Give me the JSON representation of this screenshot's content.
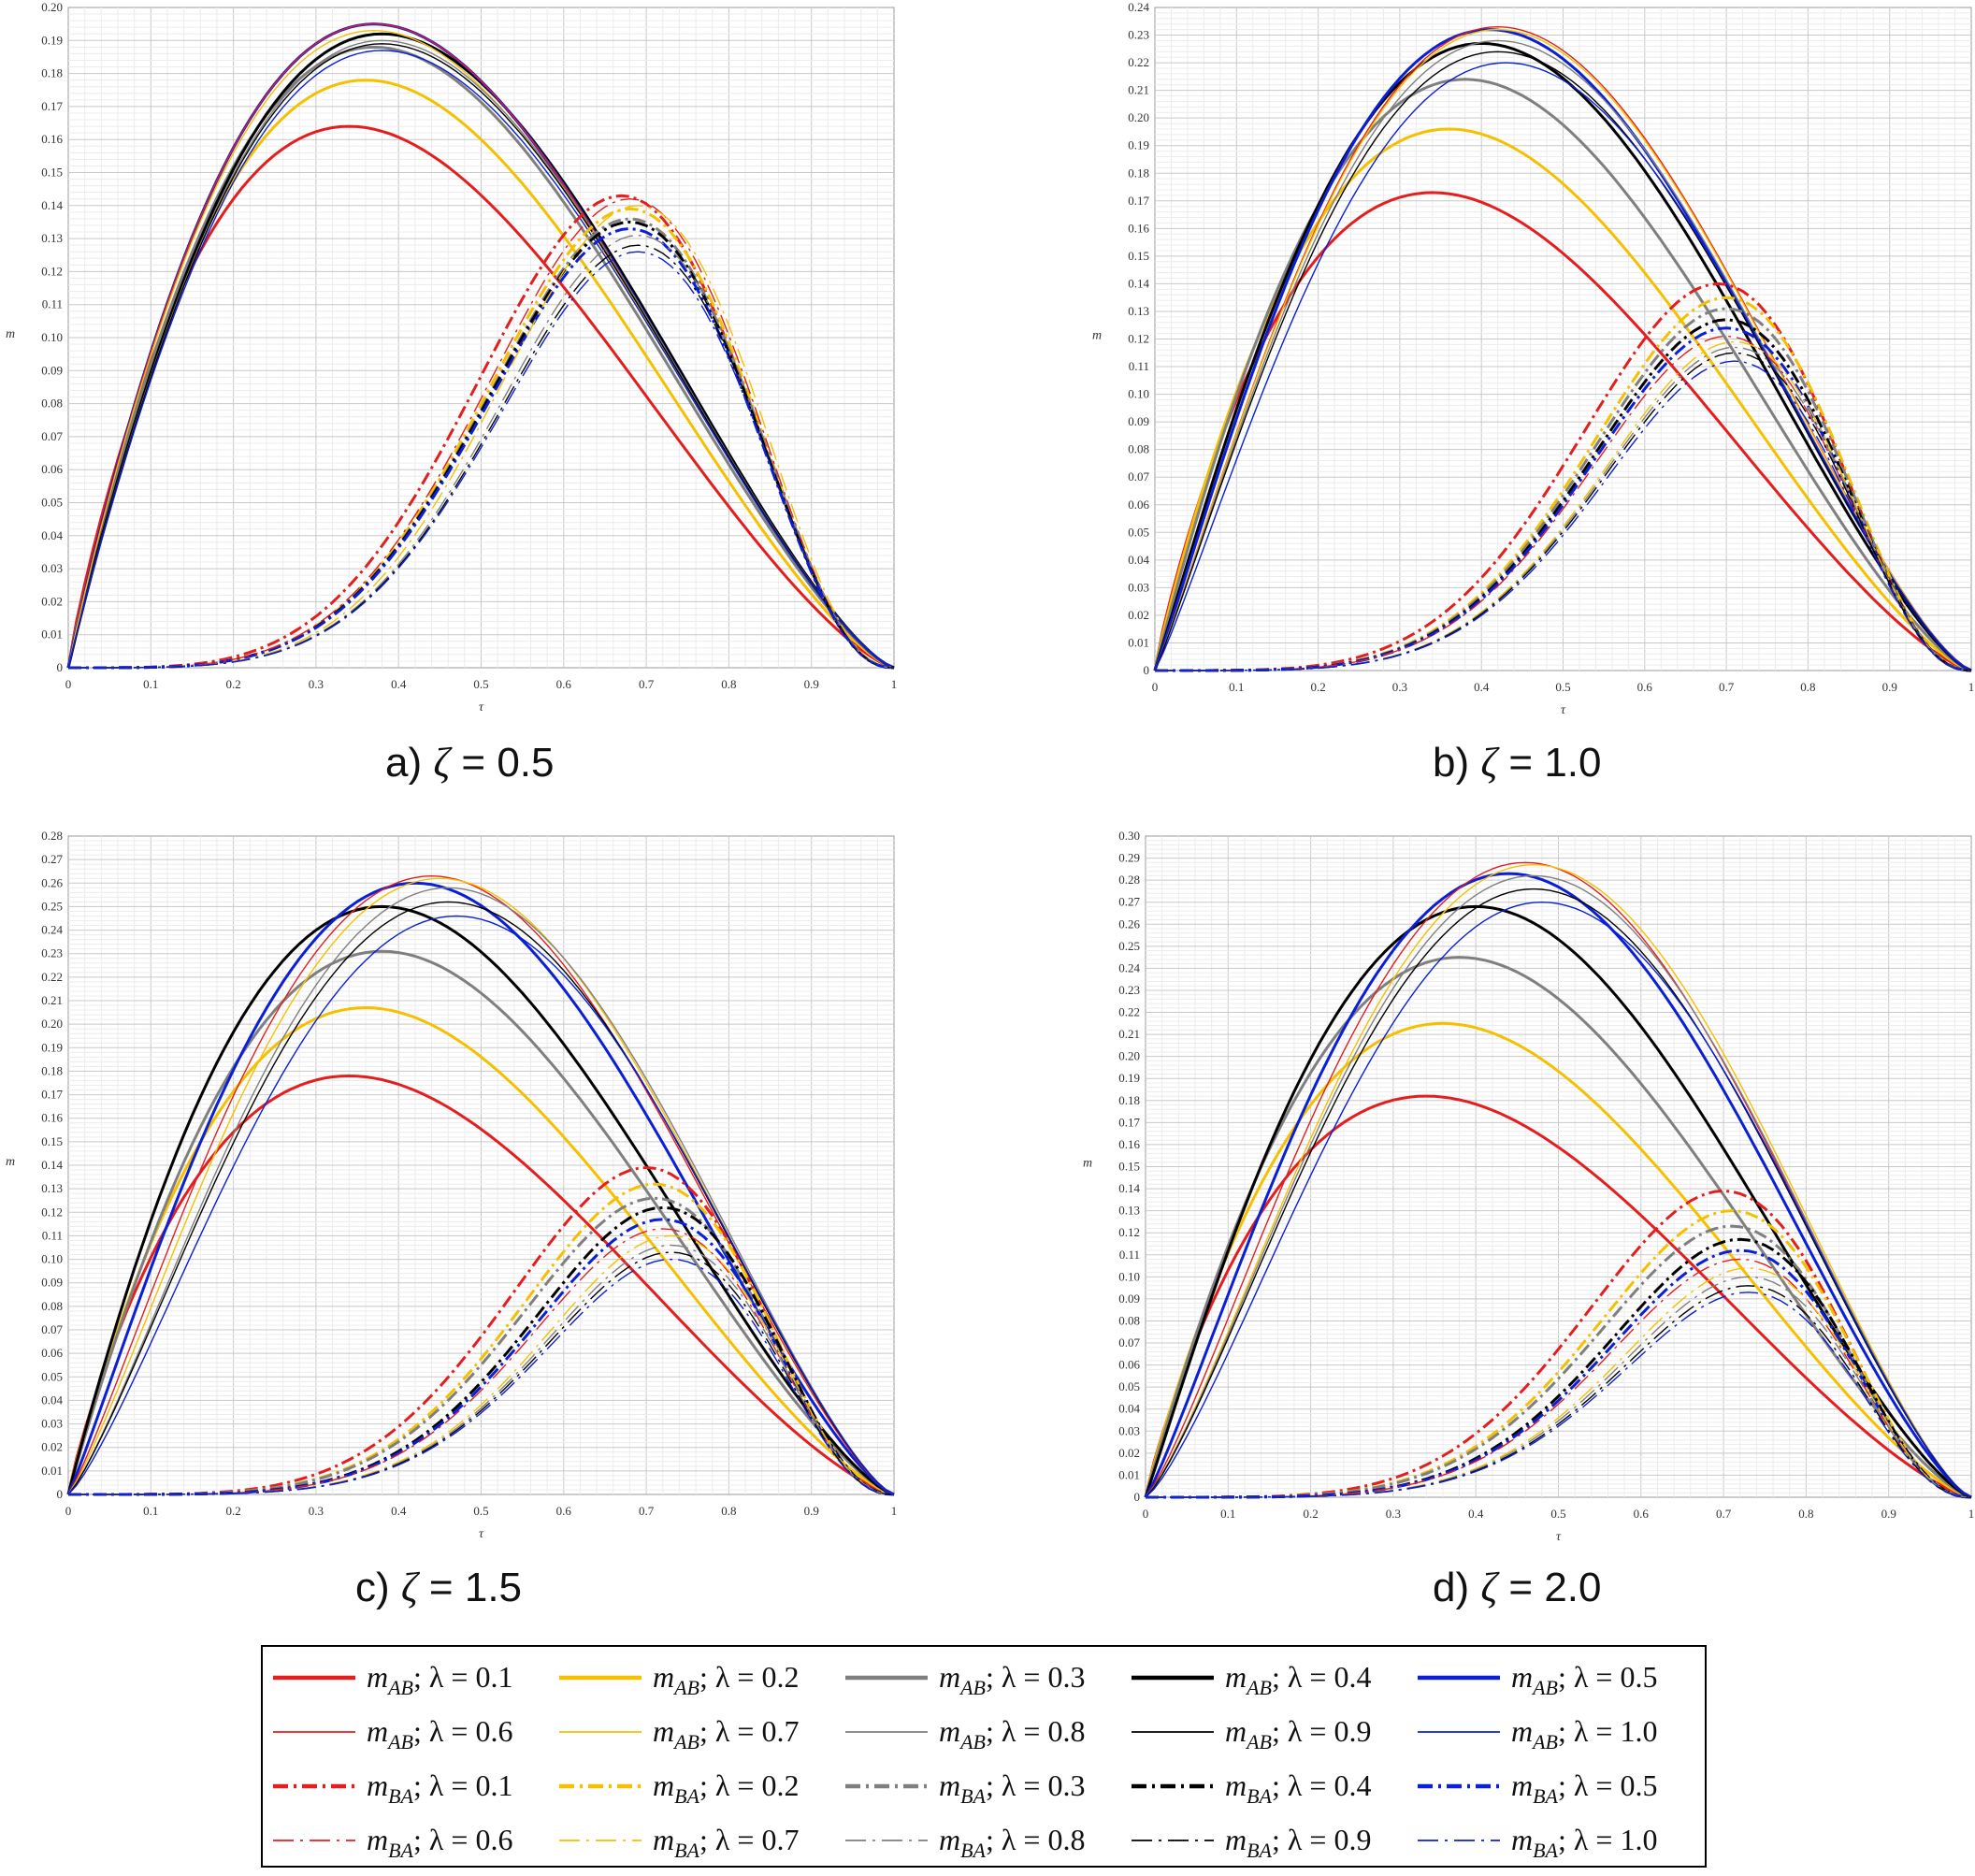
{
  "chart_data": [
    {
      "type": "line",
      "id": "a",
      "caption_prefix": "a) ",
      "caption_symbol": "ζ",
      "caption_value": " = 0.5",
      "xlabel": "τ",
      "ylabel": "m",
      "xlim": [
        0,
        1
      ],
      "ylim": [
        0,
        0.2
      ],
      "ystep": 0.01,
      "grid": true,
      "xticks": [
        "0",
        "0.1",
        "0.2",
        "0.3",
        "0.4",
        "0.5",
        "0.6",
        "0.7",
        "0.8",
        "0.9",
        "1"
      ],
      "yticks": [
        "0",
        "0.01",
        "0.02",
        "0.03",
        "0.04",
        "0.05",
        "0.06",
        "0.07",
        "0.08",
        "0.09",
        "0.10",
        "0.11",
        "0.12",
        "0.13",
        "0.14",
        "0.15",
        "0.16",
        "0.17",
        "0.18",
        "0.19",
        "0.20"
      ],
      "series": [
        {
          "name": "m_AB; λ = 0.1",
          "peak_x": 0.34,
          "peak_y": 0.164
        },
        {
          "name": "m_AB; λ = 0.2",
          "peak_x": 0.36,
          "peak_y": 0.178
        },
        {
          "name": "m_AB; λ = 0.3",
          "peak_x": 0.37,
          "peak_y": 0.188
        },
        {
          "name": "m_AB; λ = 0.4",
          "peak_x": 0.38,
          "peak_y": 0.192
        },
        {
          "name": "m_AB; λ = 0.5",
          "peak_x": 0.37,
          "peak_y": 0.195
        },
        {
          "name": "m_AB; λ = 0.6",
          "peak_x": 0.37,
          "peak_y": 0.195
        },
        {
          "name": "m_AB; λ = 0.7",
          "peak_x": 0.37,
          "peak_y": 0.193
        },
        {
          "name": "m_AB; λ = 0.8",
          "peak_x": 0.38,
          "peak_y": 0.19
        },
        {
          "name": "m_AB; λ = 0.9",
          "peak_x": 0.38,
          "peak_y": 0.189
        },
        {
          "name": "m_AB; λ = 1.0",
          "peak_x": 0.38,
          "peak_y": 0.187
        },
        {
          "name": "m_BA; λ = 0.1",
          "peak_x": 0.67,
          "peak_y": 0.143
        },
        {
          "name": "m_BA; λ = 0.2",
          "peak_x": 0.68,
          "peak_y": 0.139
        },
        {
          "name": "m_BA; λ = 0.3",
          "peak_x": 0.68,
          "peak_y": 0.136
        },
        {
          "name": "m_BA; λ = 0.4",
          "peak_x": 0.68,
          "peak_y": 0.135
        },
        {
          "name": "m_BA; λ = 0.5",
          "peak_x": 0.68,
          "peak_y": 0.133
        },
        {
          "name": "m_BA; λ = 0.6",
          "peak_x": 0.68,
          "peak_y": 0.142
        },
        {
          "name": "m_BA; λ = 0.7",
          "peak_x": 0.69,
          "peak_y": 0.14
        },
        {
          "name": "m_BA; λ = 0.8",
          "peak_x": 0.69,
          "peak_y": 0.131
        },
        {
          "name": "m_BA; λ = 0.9",
          "peak_x": 0.69,
          "peak_y": 0.128
        },
        {
          "name": "m_BA; λ = 1.0",
          "peak_x": 0.69,
          "peak_y": 0.126
        }
      ]
    },
    {
      "type": "line",
      "id": "b",
      "caption_prefix": "b) ",
      "caption_symbol": "ζ",
      "caption_value": " = 1.0",
      "xlabel": "τ",
      "ylabel": "m",
      "xlim": [
        0,
        1
      ],
      "ylim": [
        0,
        0.24
      ],
      "ystep": 0.01,
      "grid": true,
      "xticks": [
        "0",
        "0.1",
        "0.2",
        "0.3",
        "0.4",
        "0.5",
        "0.6",
        "0.7",
        "0.8",
        "0.9",
        "1"
      ],
      "yticks": [
        "0",
        "0.01",
        "0.02",
        "0.03",
        "0.04",
        "0.05",
        "0.06",
        "0.07",
        "0.08",
        "0.09",
        "0.10",
        "0.11",
        "0.12",
        "0.13",
        "0.14",
        "0.15",
        "0.16",
        "0.17",
        "0.18",
        "0.19",
        "0.20",
        "0.21",
        "0.22",
        "0.23",
        "0.24"
      ],
      "series": [
        {
          "name": "m_AB; λ = 0.1",
          "peak_x": 0.34,
          "peak_y": 0.173
        },
        {
          "name": "m_AB; λ = 0.2",
          "peak_x": 0.36,
          "peak_y": 0.196
        },
        {
          "name": "m_AB; λ = 0.3",
          "peak_x": 0.38,
          "peak_y": 0.214
        },
        {
          "name": "m_AB; λ = 0.4",
          "peak_x": 0.4,
          "peak_y": 0.227
        },
        {
          "name": "m_AB; λ = 0.5",
          "peak_x": 0.41,
          "peak_y": 0.232
        },
        {
          "name": "m_AB; λ = 0.6",
          "peak_x": 0.42,
          "peak_y": 0.233
        },
        {
          "name": "m_AB; λ = 0.7",
          "peak_x": 0.42,
          "peak_y": 0.232
        },
        {
          "name": "m_AB; λ = 0.8",
          "peak_x": 0.42,
          "peak_y": 0.228
        },
        {
          "name": "m_AB; λ = 0.9",
          "peak_x": 0.42,
          "peak_y": 0.224
        },
        {
          "name": "m_AB; λ = 1.0",
          "peak_x": 0.43,
          "peak_y": 0.22
        },
        {
          "name": "m_BA; λ = 0.1",
          "peak_x": 0.69,
          "peak_y": 0.14
        },
        {
          "name": "m_BA; λ = 0.2",
          "peak_x": 0.7,
          "peak_y": 0.135
        },
        {
          "name": "m_BA; λ = 0.3",
          "peak_x": 0.7,
          "peak_y": 0.131
        },
        {
          "name": "m_BA; λ = 0.4",
          "peak_x": 0.7,
          "peak_y": 0.127
        },
        {
          "name": "m_BA; λ = 0.5",
          "peak_x": 0.7,
          "peak_y": 0.124
        },
        {
          "name": "m_BA; λ = 0.6",
          "peak_x": 0.7,
          "peak_y": 0.121
        },
        {
          "name": "m_BA; λ = 0.7",
          "peak_x": 0.71,
          "peak_y": 0.119
        },
        {
          "name": "m_BA; λ = 0.8",
          "peak_x": 0.71,
          "peak_y": 0.117
        },
        {
          "name": "m_BA; λ = 0.9",
          "peak_x": 0.71,
          "peak_y": 0.115
        },
        {
          "name": "m_BA; λ = 1.0",
          "peak_x": 0.71,
          "peak_y": 0.112
        }
      ]
    },
    {
      "type": "line",
      "id": "c",
      "caption_prefix": "c) ",
      "caption_symbol": "ζ",
      "caption_value": " = 1.5",
      "xlabel": "τ",
      "ylabel": "m",
      "xlim": [
        0,
        1
      ],
      "ylim": [
        0,
        0.28
      ],
      "ystep": 0.01,
      "grid": true,
      "xticks": [
        "0",
        "0.1",
        "0.2",
        "0.3",
        "0.4",
        "0.5",
        "0.6",
        "0.7",
        "0.8",
        "0.9",
        "1"
      ],
      "yticks": [
        "0",
        "0.01",
        "0.02",
        "0.03",
        "0.04",
        "0.05",
        "0.06",
        "0.07",
        "0.08",
        "0.09",
        "0.10",
        "0.11",
        "0.12",
        "0.13",
        "0.14",
        "0.15",
        "0.16",
        "0.17",
        "0.18",
        "0.19",
        "0.20",
        "0.21",
        "0.22",
        "0.23",
        "0.24",
        "0.25",
        "0.26",
        "0.27",
        "0.28"
      ],
      "series": [
        {
          "name": "m_AB; λ = 0.1",
          "peak_x": 0.34,
          "peak_y": 0.178
        },
        {
          "name": "m_AB; λ = 0.2",
          "peak_x": 0.36,
          "peak_y": 0.207
        },
        {
          "name": "m_AB; λ = 0.3",
          "peak_x": 0.38,
          "peak_y": 0.231
        },
        {
          "name": "m_AB; λ = 0.4",
          "peak_x": 0.38,
          "peak_y": 0.25
        },
        {
          "name": "m_AB; λ = 0.5",
          "peak_x": 0.42,
          "peak_y": 0.26
        },
        {
          "name": "m_AB; λ = 0.6",
          "peak_x": 0.44,
          "peak_y": 0.263
        },
        {
          "name": "m_AB; λ = 0.7",
          "peak_x": 0.45,
          "peak_y": 0.262
        },
        {
          "name": "m_AB; λ = 0.8",
          "peak_x": 0.46,
          "peak_y": 0.258
        },
        {
          "name": "m_AB; λ = 0.9",
          "peak_x": 0.46,
          "peak_y": 0.252
        },
        {
          "name": "m_AB; λ = 1.0",
          "peak_x": 0.47,
          "peak_y": 0.246
        },
        {
          "name": "m_BA; λ = 0.1",
          "peak_x": 0.7,
          "peak_y": 0.139
        },
        {
          "name": "m_BA; λ = 0.2",
          "peak_x": 0.71,
          "peak_y": 0.132
        },
        {
          "name": "m_BA; λ = 0.3",
          "peak_x": 0.71,
          "peak_y": 0.126
        },
        {
          "name": "m_BA; λ = 0.4",
          "peak_x": 0.72,
          "peak_y": 0.122
        },
        {
          "name": "m_BA; λ = 0.5",
          "peak_x": 0.72,
          "peak_y": 0.117
        },
        {
          "name": "m_BA; λ = 0.6",
          "peak_x": 0.72,
          "peak_y": 0.113
        },
        {
          "name": "m_BA; λ = 0.7",
          "peak_x": 0.73,
          "peak_y": 0.11
        },
        {
          "name": "m_BA; λ = 0.8",
          "peak_x": 0.73,
          "peak_y": 0.106
        },
        {
          "name": "m_BA; λ = 0.9",
          "peak_x": 0.73,
          "peak_y": 0.103
        },
        {
          "name": "m_BA; λ = 1.0",
          "peak_x": 0.73,
          "peak_y": 0.1
        }
      ]
    },
    {
      "type": "line",
      "id": "d",
      "caption_prefix": "d) ",
      "caption_symbol": "ζ",
      "caption_value": " = 2.0",
      "xlabel": "τ",
      "ylabel": "m",
      "xlim": [
        0,
        1
      ],
      "ylim": [
        0,
        0.3
      ],
      "ystep": 0.01,
      "grid": true,
      "xticks": [
        "0",
        "0.1",
        "0.2",
        "0.3",
        "0.4",
        "0.5",
        "0.6",
        "0.7",
        "0.8",
        "0.9",
        "1"
      ],
      "yticks": [
        "0",
        "0.01",
        "0.02",
        "0.03",
        "0.04",
        "0.05",
        "0.06",
        "0.07",
        "0.08",
        "0.09",
        "0.10",
        "0.11",
        "0.12",
        "0.13",
        "0.14",
        "0.15",
        "0.16",
        "0.17",
        "0.18",
        "0.19",
        "0.20",
        "0.21",
        "0.22",
        "0.23",
        "0.24",
        "0.25",
        "0.26",
        "0.27",
        "0.28",
        "0.29",
        "0.30"
      ],
      "series": [
        {
          "name": "m_AB; λ = 0.1",
          "peak_x": 0.34,
          "peak_y": 0.182
        },
        {
          "name": "m_AB; λ = 0.2",
          "peak_x": 0.36,
          "peak_y": 0.215
        },
        {
          "name": "m_AB; λ = 0.3",
          "peak_x": 0.38,
          "peak_y": 0.245
        },
        {
          "name": "m_AB; λ = 0.4",
          "peak_x": 0.4,
          "peak_y": 0.268
        },
        {
          "name": "m_AB; λ = 0.5",
          "peak_x": 0.44,
          "peak_y": 0.283
        },
        {
          "name": "m_AB; λ = 0.6",
          "peak_x": 0.46,
          "peak_y": 0.288
        },
        {
          "name": "m_AB; λ = 0.7",
          "peak_x": 0.47,
          "peak_y": 0.287
        },
        {
          "name": "m_AB; λ = 0.8",
          "peak_x": 0.47,
          "peak_y": 0.282
        },
        {
          "name": "m_AB; λ = 0.9",
          "peak_x": 0.47,
          "peak_y": 0.276
        },
        {
          "name": "m_AB; λ = 1.0",
          "peak_x": 0.48,
          "peak_y": 0.27
        },
        {
          "name": "m_BA; λ = 0.1",
          "peak_x": 0.7,
          "peak_y": 0.139
        },
        {
          "name": "m_BA; λ = 0.2",
          "peak_x": 0.71,
          "peak_y": 0.13
        },
        {
          "name": "m_BA; λ = 0.3",
          "peak_x": 0.71,
          "peak_y": 0.123
        },
        {
          "name": "m_BA; λ = 0.4",
          "peak_x": 0.72,
          "peak_y": 0.117
        },
        {
          "name": "m_BA; λ = 0.5",
          "peak_x": 0.72,
          "peak_y": 0.112
        },
        {
          "name": "m_BA; λ = 0.6",
          "peak_x": 0.72,
          "peak_y": 0.108
        },
        {
          "name": "m_BA; λ = 0.7",
          "peak_x": 0.73,
          "peak_y": 0.104
        },
        {
          "name": "m_BA; λ = 0.8",
          "peak_x": 0.73,
          "peak_y": 0.1
        },
        {
          "name": "m_BA; λ = 0.9",
          "peak_x": 0.73,
          "peak_y": 0.096
        },
        {
          "name": "m_BA; λ = 1.0",
          "peak_x": 0.73,
          "peak_y": 0.093
        }
      ]
    }
  ],
  "legend": {
    "entries": [
      {
        "m": "m",
        "sub": "AB",
        "lambda": "; λ = 0.1",
        "color": "#e41e1e",
        "style": "solid-bold"
      },
      {
        "m": "m",
        "sub": "AB",
        "lambda": "; λ = 0.2",
        "color": "#f5c000",
        "style": "solid-bold"
      },
      {
        "m": "m",
        "sub": "AB",
        "lambda": "; λ = 0.3",
        "color": "#7f7f7f",
        "style": "solid-bold"
      },
      {
        "m": "m",
        "sub": "AB",
        "lambda": "; λ = 0.4",
        "color": "#000000",
        "style": "solid-bold"
      },
      {
        "m": "m",
        "sub": "AB",
        "lambda": "; λ = 0.5",
        "color": "#0a1fd6",
        "style": "solid-bold"
      },
      {
        "m": "m",
        "sub": "AB",
        "lambda": "; λ = 0.6",
        "color": "#e41e1e",
        "style": "solid-thin"
      },
      {
        "m": "m",
        "sub": "AB",
        "lambda": "; λ = 0.7",
        "color": "#f5c000",
        "style": "solid-thin"
      },
      {
        "m": "m",
        "sub": "AB",
        "lambda": "; λ = 0.8",
        "color": "#7f7f7f",
        "style": "solid-thin"
      },
      {
        "m": "m",
        "sub": "AB",
        "lambda": "; λ = 0.9",
        "color": "#000000",
        "style": "solid-thin"
      },
      {
        "m": "m",
        "sub": "AB",
        "lambda": "; λ = 1.0",
        "color": "#0a1fd6",
        "style": "solid-thin"
      },
      {
        "m": "m",
        "sub": "BA",
        "lambda": "; λ = 0.1",
        "color": "#e41e1e",
        "style": "dashdot-bold"
      },
      {
        "m": "m",
        "sub": "BA",
        "lambda": "; λ = 0.2",
        "color": "#f5c000",
        "style": "dashdot-bold"
      },
      {
        "m": "m",
        "sub": "BA",
        "lambda": "; λ = 0.3",
        "color": "#7f7f7f",
        "style": "dashdot-bold"
      },
      {
        "m": "m",
        "sub": "BA",
        "lambda": "; λ = 0.4",
        "color": "#000000",
        "style": "dashdot-bold"
      },
      {
        "m": "m",
        "sub": "BA",
        "lambda": "; λ = 0.5",
        "color": "#0a1fd6",
        "style": "dashdot-bold"
      },
      {
        "m": "m",
        "sub": "BA",
        "lambda": "; λ = 0.6",
        "color": "#e41e1e",
        "style": "dashdot-thin"
      },
      {
        "m": "m",
        "sub": "BA",
        "lambda": "; λ = 0.7",
        "color": "#f5c000",
        "style": "dashdot-thin"
      },
      {
        "m": "m",
        "sub": "BA",
        "lambda": "; λ = 0.8",
        "color": "#7f7f7f",
        "style": "dashdot-thin"
      },
      {
        "m": "m",
        "sub": "BA",
        "lambda": "; λ = 0.9",
        "color": "#000000",
        "style": "dashdot-thin"
      },
      {
        "m": "m",
        "sub": "BA",
        "lambda": "; λ = 1.0",
        "color": "#0a1fd6",
        "style": "dashdot-thin"
      }
    ]
  }
}
